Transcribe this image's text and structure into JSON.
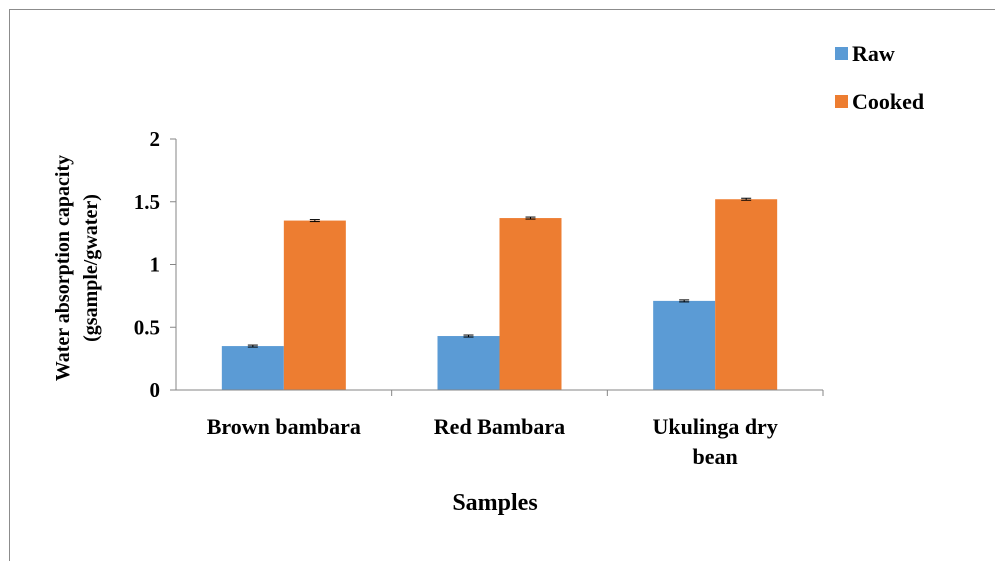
{
  "chart_data": {
    "type": "bar",
    "categories": [
      [
        "Brown bambara"
      ],
      [
        "Red Bambara"
      ],
      [
        "Ukulinga dry",
        "bean"
      ]
    ],
    "series": [
      {
        "name": "Raw",
        "color": "#5b9bd5",
        "values": [
          0.35,
          0.43,
          0.71
        ]
      },
      {
        "name": "Cooked",
        "color": "#ed7d31",
        "values": [
          1.35,
          1.37,
          1.52
        ]
      }
    ],
    "error_bars": true,
    "xlabel": "Samples",
    "ylabel": [
      "Water absorption capacity",
      "(gsample/gwater)"
    ],
    "ylim": [
      0,
      2
    ],
    "yticks": [
      0,
      0.5,
      1,
      1.5,
      2
    ],
    "ytick_labels": [
      "0",
      "0.5",
      "1",
      "1.5",
      "2"
    ],
    "grid": false,
    "legend_position": "top-right"
  }
}
